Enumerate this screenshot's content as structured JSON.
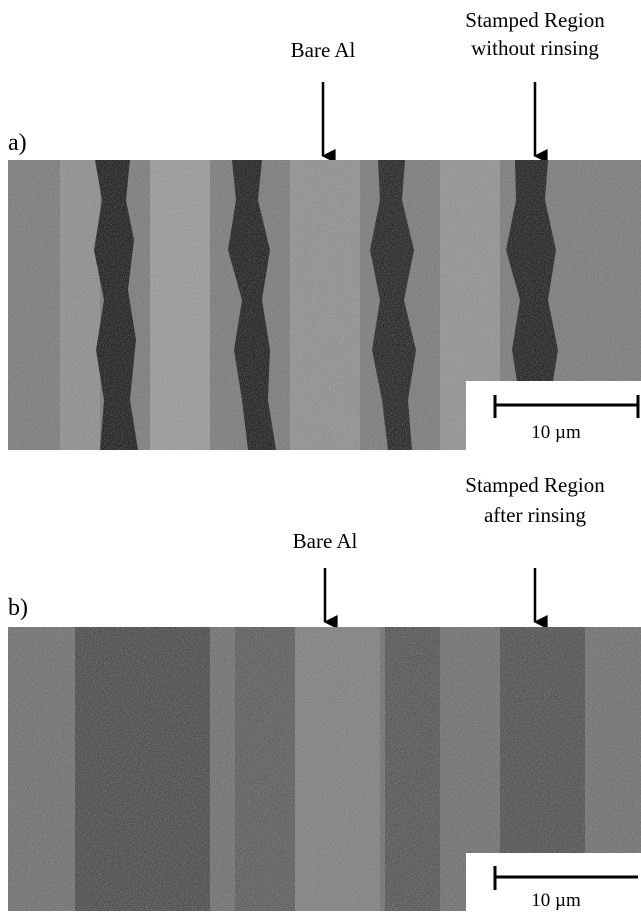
{
  "panels": [
    {
      "label": "a)",
      "annotations": [
        {
          "lines": [
            "Bare Al"
          ]
        },
        {
          "lines": [
            "Stamped Region",
            "without rinsing"
          ]
        }
      ],
      "scale_bar": "10 µm"
    },
    {
      "label": "b)",
      "annotations": [
        {
          "lines": [
            "Bare Al"
          ]
        },
        {
          "lines": [
            "Stamped Region",
            "after rinsing"
          ]
        }
      ],
      "scale_bar": "10 µm"
    }
  ]
}
